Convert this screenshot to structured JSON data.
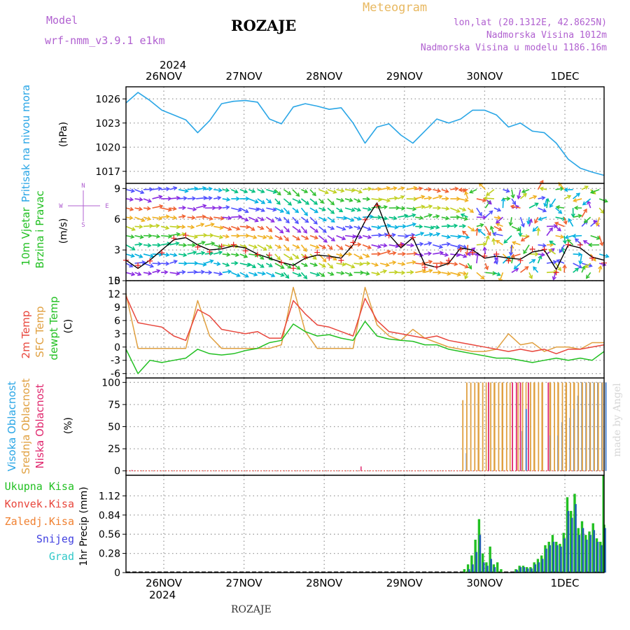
{
  "header": {
    "model_label": "Model",
    "model_name": "wrf-nmm_v3.9.1 e1km",
    "station": "ROZAJE",
    "product": "Meteogram",
    "lonlat": "lon,lat (20.1312E, 42.8625N)",
    "elevation": "Nadmorska Visina 1012m",
    "model_elevation": "Nadmorska Visina u modelu 1186.16m"
  },
  "footer": {
    "station": "ROZAJE",
    "credit": "made by Angel"
  },
  "time_axis": {
    "top_year": "2024",
    "bottom_year": "2024",
    "day_labels": [
      "26NOV",
      "27NOV",
      "28NOV",
      "29NOV",
      "30NOV",
      "1DEC"
    ],
    "hours_span": 120
  },
  "legend": {
    "pressure": "Pritisak na nivou mora",
    "wind": [
      "10m Vjetar",
      "Brzina i Pravac"
    ],
    "temp": [
      "2m Temp",
      "SFC Temp",
      "dewpt Temp"
    ],
    "cloud": [
      "Visoka Oblacnost",
      "Srednja Oblacnost",
      "Niska Oblacnost"
    ],
    "precip": [
      "Ukupna Kisa",
      "Konvek.Kisa",
      "Zaledj.Kisa",
      "Snijeg",
      "Grad"
    ],
    "compass": {
      "n": "N",
      "s": "S",
      "e": "E",
      "w": "W"
    }
  },
  "colors": {
    "pressure": "#2aa6e6",
    "temp2m": "#e8463c",
    "sfc": "#e0a040",
    "dewpt": "#22c022",
    "cloud_high": "#3a7bd5",
    "cloud_mid": "#e0a040",
    "cloud_low": "#e0286e",
    "precip_total": "#22c022",
    "precip_conv": "#e8463c",
    "precip_frz": "#f08030",
    "precip_snow": "#4040e0",
    "precip_hail": "#30c8c8",
    "model_purple": "#b060d0",
    "title_gold": "#e8b860"
  },
  "chart_data": [
    {
      "type": "line",
      "name": "pressure",
      "ylabel": "(hPa)",
      "ylim": [
        1015.5,
        1027.5
      ],
      "yticks": [
        1017,
        1020,
        1023,
        1026
      ],
      "grid": true,
      "x": [
        0,
        3,
        6,
        9,
        12,
        15,
        18,
        21,
        24,
        27,
        30,
        33,
        36,
        39,
        42,
        45,
        48,
        51,
        54,
        57,
        60,
        63,
        66,
        69,
        72,
        75,
        78,
        81,
        84,
        87,
        90,
        93,
        96,
        99,
        102,
        105,
        108,
        111,
        114,
        117,
        120
      ],
      "values": [
        1025.5,
        1026.8,
        1025.8,
        1024.6,
        1024.0,
        1023.4,
        1021.8,
        1023.3,
        1025.4,
        1025.7,
        1025.8,
        1025.6,
        1023.5,
        1022.9,
        1025.0,
        1025.4,
        1025.1,
        1024.7,
        1024.9,
        1023.0,
        1020.5,
        1022.5,
        1022.9,
        1021.5,
        1020.5,
        1022.0,
        1023.5,
        1023.0,
        1023.5,
        1024.6,
        1024.6,
        1024.0,
        1022.5,
        1023.0,
        1022.0,
        1021.8,
        1020.5,
        1018.5,
        1017.4,
        1016.9,
        1016.5
      ]
    },
    {
      "type": "line",
      "name": "wind",
      "ylabel": "(m/s)",
      "ylim": [
        0,
        9.5
      ],
      "yticks": [
        0,
        3,
        6,
        9
      ],
      "grid": true,
      "x": [
        0,
        3,
        6,
        9,
        12,
        15,
        18,
        21,
        24,
        27,
        30,
        33,
        36,
        39,
        42,
        45,
        48,
        51,
        54,
        57,
        60,
        63,
        66,
        69,
        72,
        75,
        78,
        81,
        84,
        87,
        90,
        93,
        96,
        99,
        102,
        105,
        108,
        111,
        114,
        117,
        120
      ],
      "values": [
        2.0,
        1.2,
        2.0,
        3.0,
        4.0,
        4.2,
        3.5,
        3.0,
        3.1,
        3.4,
        3.2,
        2.6,
        2.2,
        1.8,
        1.5,
        2.2,
        2.5,
        2.4,
        2.2,
        3.5,
        5.8,
        7.6,
        4.5,
        3.2,
        4.2,
        1.6,
        1.3,
        1.7,
        3.2,
        3.0,
        2.2,
        2.4,
        2.2,
        2.1,
        2.8,
        3.0,
        1.1,
        3.5,
        3.2,
        2.3,
        2.0
      ]
    },
    {
      "type": "line",
      "name": "temperature",
      "ylabel": "(C)",
      "ylim": [
        -7,
        15
      ],
      "yticks": [
        -6,
        -3,
        0,
        3,
        6,
        9,
        12,
        15
      ],
      "grid": true,
      "x": [
        0,
        3,
        6,
        9,
        12,
        15,
        18,
        21,
        24,
        27,
        30,
        33,
        36,
        39,
        42,
        45,
        48,
        51,
        54,
        57,
        60,
        63,
        66,
        69,
        72,
        75,
        78,
        81,
        84,
        87,
        90,
        93,
        96,
        99,
        102,
        105,
        108,
        111,
        114,
        117,
        120
      ],
      "series": [
        {
          "name": "2m Temp",
          "values": [
            11.5,
            5.5,
            5.0,
            4.5,
            2.5,
            1.5,
            8.5,
            7.0,
            4.0,
            3.5,
            3.0,
            3.5,
            2.0,
            2.0,
            10.5,
            7.5,
            5.0,
            4.5,
            3.5,
            2.5,
            11.0,
            6.0,
            3.5,
            3.0,
            2.5,
            2.0,
            2.5,
            1.5,
            1.0,
            0.5,
            0.0,
            -0.5,
            -1.0,
            -0.5,
            -1.0,
            -0.5,
            -1.5,
            -0.5,
            -0.5,
            0.0,
            0.5
          ]
        },
        {
          "name": "SFC Temp",
          "values": [
            12.0,
            -0.3,
            -0.3,
            -0.3,
            -0.3,
            -0.3,
            10.5,
            2.5,
            -0.3,
            -0.3,
            -0.3,
            -0.3,
            -0.3,
            0.5,
            13.5,
            3.5,
            -0.3,
            -0.3,
            -0.3,
            -0.3,
            13.5,
            5.0,
            2.5,
            1.5,
            4.0,
            2.0,
            1.0,
            0.0,
            -0.5,
            -1.0,
            -1.0,
            -0.5,
            3.0,
            0.5,
            1.0,
            -1.0,
            0.0,
            0.0,
            -0.5,
            1.0,
            1.0
          ]
        },
        {
          "name": "dewpt Temp",
          "values": [
            -0.5,
            -6.0,
            -3.0,
            -3.5,
            -3.0,
            -2.5,
            -0.5,
            -1.5,
            -1.8,
            -1.5,
            -0.8,
            -0.3,
            1.0,
            1.5,
            5.2,
            3.5,
            2.5,
            2.8,
            2.0,
            1.5,
            5.8,
            2.5,
            1.8,
            1.5,
            1.3,
            0.5,
            0.5,
            -0.5,
            -1.0,
            -1.5,
            -2.0,
            -2.5,
            -2.5,
            -3.0,
            -3.5,
            -3.0,
            -2.5,
            -3.0,
            -2.5,
            -3.0,
            -1.0
          ]
        }
      ]
    },
    {
      "type": "bar",
      "name": "cloud",
      "ylabel": "(%)",
      "ylim": [
        -5,
        105
      ],
      "yticks": [
        0,
        25,
        50,
        75,
        100
      ],
      "grid": true,
      "x_start": 85,
      "x_end": 120,
      "bars_per_step": 1,
      "mid_pattern": [
        80,
        100,
        100,
        100,
        100,
        100,
        0,
        100,
        100,
        100,
        100,
        100,
        0,
        0,
        0,
        100,
        0,
        100,
        100,
        100,
        100,
        0,
        100,
        100,
        100,
        100,
        100,
        100,
        100,
        100,
        100,
        100,
        100,
        100,
        100,
        100
      ],
      "low_pattern": [
        0,
        0,
        0,
        0,
        0,
        0,
        100,
        0,
        0,
        0,
        0,
        0,
        100,
        100,
        100,
        0,
        100,
        0,
        0,
        0,
        0,
        100,
        0,
        0,
        0,
        0,
        0,
        0,
        0,
        0,
        0,
        0,
        0,
        0,
        0,
        0
      ],
      "high_pattern": [
        20,
        0,
        0,
        0,
        0,
        0,
        0,
        0,
        0,
        0,
        0,
        0,
        0,
        0,
        45,
        70,
        0,
        0,
        0,
        0,
        0,
        40,
        0,
        40,
        55,
        0,
        60,
        70,
        85,
        100,
        100,
        100,
        100,
        100,
        100,
        100
      ],
      "low_spikes": [
        {
          "x": 1.5,
          "v": 1
        },
        {
          "x": 59,
          "v": 5
        }
      ]
    },
    {
      "type": "bar",
      "name": "precip",
      "ylabel": "1hr Precip (mm)",
      "ylim": [
        0,
        1.42
      ],
      "yticks": [
        0,
        0.28,
        0.56,
        0.84,
        1.12
      ],
      "grid": true,
      "total": [
        [
          92,
          0.05
        ],
        [
          93,
          0.12
        ],
        [
          94,
          0.25
        ],
        [
          95,
          0.48
        ],
        [
          96,
          0.78
        ],
        [
          97,
          0.28
        ],
        [
          98,
          0.15
        ],
        [
          99,
          0.38
        ],
        [
          100,
          0.12
        ],
        [
          101,
          0.15
        ],
        [
          102,
          0.05
        ],
        [
          106,
          0.05
        ],
        [
          107,
          0.1
        ],
        [
          108,
          0.1
        ],
        [
          109,
          0.08
        ],
        [
          110,
          0.08
        ],
        [
          111,
          0.15
        ],
        [
          112,
          0.2
        ],
        [
          113,
          0.25
        ],
        [
          114,
          0.4
        ],
        [
          115,
          0.45
        ],
        [
          116,
          0.55
        ],
        [
          117,
          0.45
        ],
        [
          118,
          0.42
        ],
        [
          119,
          0.58
        ],
        [
          120,
          1.1
        ],
        [
          121,
          0.9
        ],
        [
          122,
          1.15
        ],
        [
          123,
          0.65
        ],
        [
          124,
          0.75
        ],
        [
          125,
          0.55
        ],
        [
          126,
          0.6
        ],
        [
          127,
          0.72
        ],
        [
          128,
          0.5
        ],
        [
          129,
          0.45
        ],
        [
          130,
          0.7
        ]
      ],
      "snow": [
        [
          93,
          0.05
        ],
        [
          94,
          0.12
        ],
        [
          95,
          0.3
        ],
        [
          96,
          0.55
        ],
        [
          97,
          0.15
        ],
        [
          98,
          0.1
        ],
        [
          99,
          0.2
        ],
        [
          100,
          0.08
        ],
        [
          106,
          0.04
        ],
        [
          107,
          0.08
        ],
        [
          108,
          0.08
        ],
        [
          109,
          0.06
        ],
        [
          110,
          0.06
        ],
        [
          111,
          0.12
        ],
        [
          112,
          0.15
        ],
        [
          113,
          0.2
        ],
        [
          114,
          0.35
        ],
        [
          115,
          0.4
        ],
        [
          116,
          0.45
        ],
        [
          117,
          0.4
        ],
        [
          118,
          0.38
        ],
        [
          119,
          0.5
        ],
        [
          120,
          0.9
        ],
        [
          121,
          0.8
        ],
        [
          122,
          1.0
        ],
        [
          123,
          0.55
        ],
        [
          124,
          0.65
        ],
        [
          125,
          0.48
        ],
        [
          126,
          0.55
        ],
        [
          127,
          0.62
        ],
        [
          128,
          0.45
        ],
        [
          129,
          0.4
        ],
        [
          130,
          0.65
        ]
      ],
      "last_spike": 1.42
    }
  ]
}
